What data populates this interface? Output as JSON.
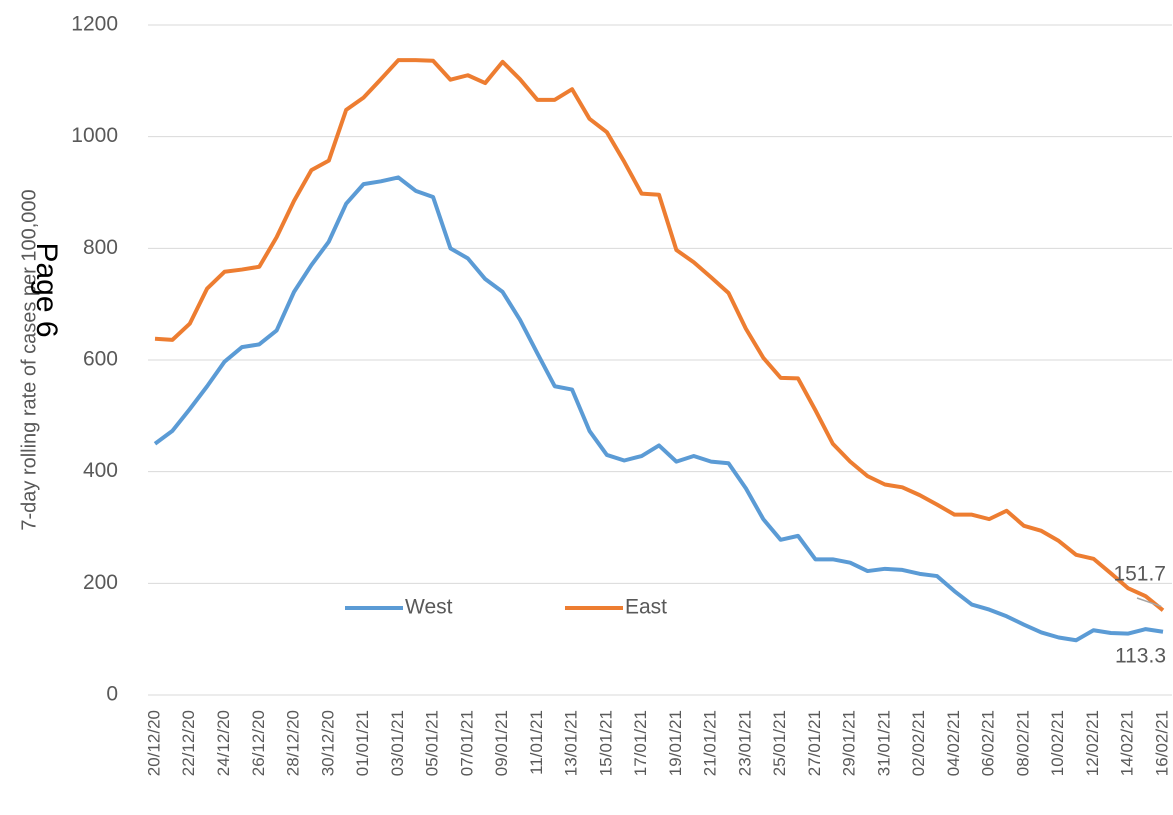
{
  "chart_data": {
    "type": "line",
    "y_label": "7-day rolling rate of cases per 100,000",
    "watermark": "Page 6",
    "categories": [
      "20/12/20",
      null,
      "22/12/20",
      null,
      "24/12/20",
      null,
      "26/12/20",
      null,
      "28/12/20",
      null,
      "30/12/20",
      null,
      "01/01/21",
      null,
      "03/01/21",
      null,
      "05/01/21",
      null,
      "07/01/21",
      null,
      "09/01/21",
      null,
      "11/01/21",
      null,
      "13/01/21",
      null,
      "15/01/21",
      null,
      "17/01/21",
      null,
      "19/01/21",
      null,
      "21/01/21",
      null,
      "23/01/21",
      null,
      "25/01/21",
      null,
      "27/01/21",
      null,
      "29/01/21",
      null,
      "31/01/21",
      null,
      "02/02/21",
      null,
      "04/02/21",
      null,
      "06/02/21",
      null,
      "08/02/21",
      null,
      "10/02/21",
      null,
      "12/02/21",
      null,
      "14/02/21",
      null,
      "16/02/21"
    ],
    "series": [
      {
        "name": "West",
        "color": "#5b9bd5",
        "values": [
          450,
          473,
          512,
          553,
          597,
          623,
          628,
          653,
          722,
          770,
          812,
          880,
          915,
          920,
          927,
          903,
          892,
          800,
          782,
          745,
          722,
          672,
          612,
          553,
          547,
          473,
          430,
          420,
          428,
          447,
          418,
          428,
          418,
          415,
          370,
          315,
          278,
          285,
          243,
          243,
          237,
          222,
          226,
          224,
          217,
          213,
          186,
          162,
          153,
          141,
          126,
          112,
          103,
          98,
          116,
          111,
          110,
          118,
          113.3
        ],
        "value_labels": [
          null,
          null,
          null,
          null,
          null,
          null,
          null,
          null,
          null,
          null,
          null,
          null,
          null,
          null,
          null,
          null,
          null,
          null,
          null,
          null,
          null,
          null,
          null,
          null,
          null,
          null,
          null,
          null,
          null,
          null,
          null,
          null,
          null,
          null,
          null,
          null,
          null,
          null,
          null,
          null,
          null,
          null,
          null,
          null,
          null,
          null,
          null,
          null,
          null,
          null,
          null,
          null,
          null,
          null,
          null,
          null,
          null,
          null,
          "113.3"
        ]
      },
      {
        "name": "East",
        "color": "#ed7d31",
        "values": [
          638,
          636,
          665,
          728,
          758,
          762,
          767,
          820,
          885,
          940,
          957,
          1048,
          1070,
          1103,
          1137,
          1137,
          1136,
          1102,
          1110,
          1096,
          1134,
          1103,
          1066,
          1066,
          1085,
          1032,
          1008,
          955,
          898,
          896,
          797,
          775,
          748,
          720,
          656,
          604,
          568,
          567,
          510,
          450,
          418,
          392,
          377,
          372,
          358,
          341,
          323,
          323,
          315,
          330,
          303,
          294,
          276,
          251,
          244,
          218,
          191,
          177,
          151.7
        ],
        "value_labels": [
          null,
          null,
          null,
          null,
          null,
          null,
          null,
          null,
          null,
          null,
          null,
          null,
          null,
          null,
          null,
          null,
          null,
          null,
          null,
          null,
          null,
          null,
          null,
          null,
          null,
          null,
          null,
          null,
          null,
          null,
          null,
          null,
          null,
          null,
          null,
          null,
          null,
          null,
          null,
          null,
          null,
          null,
          null,
          null,
          null,
          null,
          null,
          null,
          null,
          null,
          null,
          null,
          null,
          null,
          null,
          null,
          null,
          null,
          "151.7"
        ]
      }
    ],
    "ylim": [
      0,
      1200
    ],
    "yticks": [
      0,
      200,
      400,
      600,
      800,
      1000,
      1200
    ],
    "grid": true
  }
}
